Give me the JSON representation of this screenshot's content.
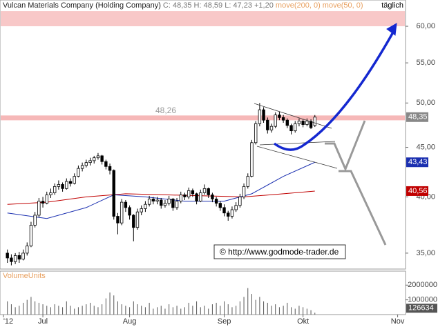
{
  "chart_data": {
    "type": "candlestick",
    "title": "Vulcan Materials Company (Holding Company)",
    "quote": "C: 48,35 H: 48,59 L: 47,23 +1,20",
    "period": "täglich",
    "source": "© http://www.godmode-trader.de",
    "log_scale": true,
    "ylim": [
      33.7,
      63.86
    ],
    "yticks": [
      {
        "value": 35,
        "label": "35,00"
      },
      {
        "value": 40,
        "label": "40,00"
      },
      {
        "value": 45,
        "label": "45,00"
      },
      {
        "value": 50,
        "label": "50,00"
      },
      {
        "value": 55,
        "label": "55,00"
      },
      {
        "value": 60,
        "label": "60,00"
      }
    ],
    "xlim": [
      -1,
      101
    ],
    "xticks": [
      {
        "value": -1,
        "label": "'12"
      },
      {
        "value": 9,
        "label": "Jul"
      },
      {
        "value": 31,
        "label": "Aug"
      },
      {
        "value": 55,
        "label": "Sep"
      },
      {
        "value": 75,
        "label": "Okt"
      },
      {
        "value": 99,
        "label": "Nov"
      }
    ],
    "x": [
      0,
      1,
      2,
      3,
      4,
      5,
      6,
      7,
      8,
      9,
      10,
      11,
      12,
      13,
      14,
      15,
      16,
      17,
      18,
      19,
      20,
      21,
      22,
      23,
      24,
      25,
      26,
      27,
      28,
      29,
      30,
      31,
      32,
      33,
      34,
      35,
      36,
      37,
      38,
      39,
      40,
      41,
      42,
      43,
      44,
      45,
      46,
      47,
      48,
      49,
      50,
      51,
      52,
      53,
      54,
      55,
      56,
      57,
      58,
      59,
      60,
      61,
      62,
      63,
      64,
      65,
      66,
      67,
      68,
      69,
      70,
      71,
      72,
      73,
      74,
      75,
      76,
      77,
      78
    ],
    "candles": [
      [
        35.0,
        35.3,
        34.2,
        34.6
      ],
      [
        34.6,
        34.9,
        34.0,
        34.3
      ],
      [
        34.3,
        35.0,
        34.1,
        34.8
      ],
      [
        34.8,
        35.1,
        34.2,
        34.5
      ],
      [
        34.5,
        35.3,
        34.4,
        35.0
      ],
      [
        35.0,
        35.9,
        34.8,
        35.6
      ],
      [
        35.6,
        37.7,
        35.5,
        37.4
      ],
      [
        37.4,
        38.6,
        37.2,
        38.3
      ],
      [
        38.3,
        39.9,
        38.1,
        39.6
      ],
      [
        39.6,
        40.0,
        39.0,
        39.4
      ],
      [
        39.4,
        40.5,
        39.3,
        40.2
      ],
      [
        40.2,
        40.8,
        39.9,
        40.4
      ],
      [
        40.4,
        41.3,
        40.2,
        41.0
      ],
      [
        41.0,
        41.6,
        40.7,
        41.2
      ],
      [
        41.2,
        41.4,
        40.5,
        40.8
      ],
      [
        40.8,
        41.8,
        40.7,
        41.5
      ],
      [
        41.5,
        41.8,
        41.0,
        41.3
      ],
      [
        41.3,
        42.3,
        41.2,
        42.0
      ],
      [
        42.0,
        43.1,
        41.9,
        42.8
      ],
      [
        42.8,
        43.4,
        42.5,
        43.1
      ],
      [
        43.1,
        43.7,
        42.9,
        43.4
      ],
      [
        43.4,
        43.9,
        43.1,
        43.6
      ],
      [
        43.6,
        44.1,
        43.3,
        43.9
      ],
      [
        43.9,
        44.4,
        43.7,
        44.1
      ],
      [
        44.1,
        44.2,
        43.2,
        43.5
      ],
      [
        43.5,
        43.7,
        42.7,
        43.0
      ],
      [
        43.0,
        43.3,
        42.2,
        42.6
      ],
      [
        42.6,
        42.7,
        37.9,
        38.2
      ],
      [
        38.2,
        38.5,
        36.6,
        37.6
      ],
      [
        37.6,
        39.8,
        37.4,
        39.5
      ],
      [
        39.5,
        39.7,
        38.6,
        39.0
      ],
      [
        39.0,
        39.2,
        37.9,
        38.3
      ],
      [
        38.3,
        38.4,
        36.0,
        37.2
      ],
      [
        37.2,
        38.9,
        37.0,
        38.6
      ],
      [
        38.6,
        39.2,
        38.3,
        38.9
      ],
      [
        38.9,
        39.6,
        38.6,
        39.3
      ],
      [
        39.3,
        40.1,
        39.1,
        39.8
      ],
      [
        39.8,
        40.0,
        39.3,
        39.6
      ],
      [
        39.6,
        40.0,
        39.3,
        39.7
      ],
      [
        39.7,
        39.9,
        38.9,
        39.2
      ],
      [
        39.2,
        39.7,
        39.0,
        39.4
      ],
      [
        39.4,
        40.1,
        39.2,
        39.8
      ],
      [
        39.8,
        39.9,
        38.7,
        39.0
      ],
      [
        39.0,
        39.9,
        38.8,
        39.6
      ],
      [
        39.6,
        40.5,
        39.4,
        40.2
      ],
      [
        40.2,
        40.4,
        39.7,
        40.0
      ],
      [
        40.0,
        40.9,
        39.8,
        40.6
      ],
      [
        40.6,
        40.8,
        40.0,
        40.3
      ],
      [
        40.3,
        40.4,
        39.3,
        39.6
      ],
      [
        39.6,
        40.7,
        39.5,
        40.4
      ],
      [
        40.4,
        41.2,
        40.2,
        40.8
      ],
      [
        40.8,
        40.9,
        39.9,
        40.2
      ],
      [
        40.2,
        40.4,
        39.5,
        39.8
      ],
      [
        39.8,
        40.0,
        39.1,
        39.4
      ],
      [
        39.4,
        39.6,
        38.7,
        39.0
      ],
      [
        39.0,
        39.3,
        38.2,
        38.5
      ],
      [
        38.5,
        38.7,
        37.8,
        38.2
      ],
      [
        38.2,
        39.1,
        38.0,
        38.8
      ],
      [
        38.8,
        39.5,
        38.6,
        39.2
      ],
      [
        39.2,
        40.3,
        39.0,
        40.0
      ],
      [
        40.0,
        41.3,
        39.8,
        41.0
      ],
      [
        41.0,
        42.3,
        40.8,
        42.0
      ],
      [
        42.0,
        45.8,
        41.9,
        45.5
      ],
      [
        45.5,
        47.9,
        45.3,
        47.6
      ],
      [
        47.6,
        50.0,
        47.3,
        49.2
      ],
      [
        49.2,
        49.5,
        47.7,
        48.0
      ],
      [
        48.0,
        48.3,
        46.5,
        46.9
      ],
      [
        46.9,
        47.6,
        46.6,
        47.3
      ],
      [
        47.3,
        48.9,
        47.1,
        48.6
      ],
      [
        48.6,
        49.0,
        48.0,
        48.3
      ],
      [
        48.3,
        48.6,
        47.7,
        48.0
      ],
      [
        48.0,
        48.2,
        47.1,
        47.4
      ],
      [
        47.4,
        47.6,
        46.4,
        46.8
      ],
      [
        46.8,
        47.9,
        46.6,
        47.6
      ],
      [
        47.6,
        48.2,
        47.3,
        47.9
      ],
      [
        47.9,
        48.1,
        47.2,
        47.5
      ],
      [
        47.5,
        48.2,
        47.3,
        47.9
      ],
      [
        47.9,
        48.1,
        47.0,
        47.15
      ],
      [
        47.4,
        48.59,
        47.23,
        48.35
      ]
    ],
    "last_label": {
      "value": 48.35,
      "label": "48,35"
    },
    "level": {
      "value": 48.26,
      "label": "48,26",
      "color": "#f6b8b8"
    },
    "target_zone": [
      60,
      62.2
    ],
    "overlays": [
      {
        "name": "move(200, 0)",
        "color": "#c00000",
        "x": [
          0,
          10,
          20,
          30,
          40,
          50,
          60,
          70,
          78
        ],
        "values": [
          39.3,
          39.5,
          40.0,
          40.3,
          40.2,
          40.1,
          40.0,
          40.3,
          40.56
        ],
        "end_label": "40,56"
      },
      {
        "name": "move(50, 0)",
        "color": "#1a2fb0",
        "x": [
          0,
          10,
          20,
          27,
          35,
          45,
          55,
          62,
          70,
          78
        ],
        "values": [
          38.5,
          38.0,
          39.0,
          40.2,
          40.0,
          39.6,
          39.6,
          40.3,
          42.0,
          43.43
        ],
        "end_label": "43,43"
      }
    ],
    "volume": {
      "title": "VolumeUnits",
      "ylim": [
        0,
        2950000
      ],
      "yticks": [
        1000000,
        2000000
      ],
      "values": [
        900000,
        700000,
        500000,
        600000,
        800000,
        1000000,
        1200000,
        900000,
        800000,
        700000,
        600000,
        500000,
        700000,
        600000,
        500000,
        900000,
        600000,
        400000,
        500000,
        600000,
        700000,
        800000,
        600000,
        500000,
        700000,
        1100000,
        1500000,
        1300000,
        900000,
        700000,
        600000,
        500000,
        900000,
        700000,
        600000,
        500000,
        800000,
        400000,
        500000,
        600000,
        400000,
        700000,
        500000,
        600000,
        400000,
        500000,
        800000,
        600000,
        900000,
        500000,
        600000,
        400000,
        700000,
        800000,
        600000,
        900000,
        700000,
        500000,
        600000,
        900000,
        1200000,
        1800000,
        1400000,
        1000000,
        1200000,
        900000,
        800000,
        600000,
        700000,
        500000,
        600000,
        800000,
        500000,
        400000,
        600000,
        500000,
        400000,
        300000,
        126634
      ]
    }
  }
}
